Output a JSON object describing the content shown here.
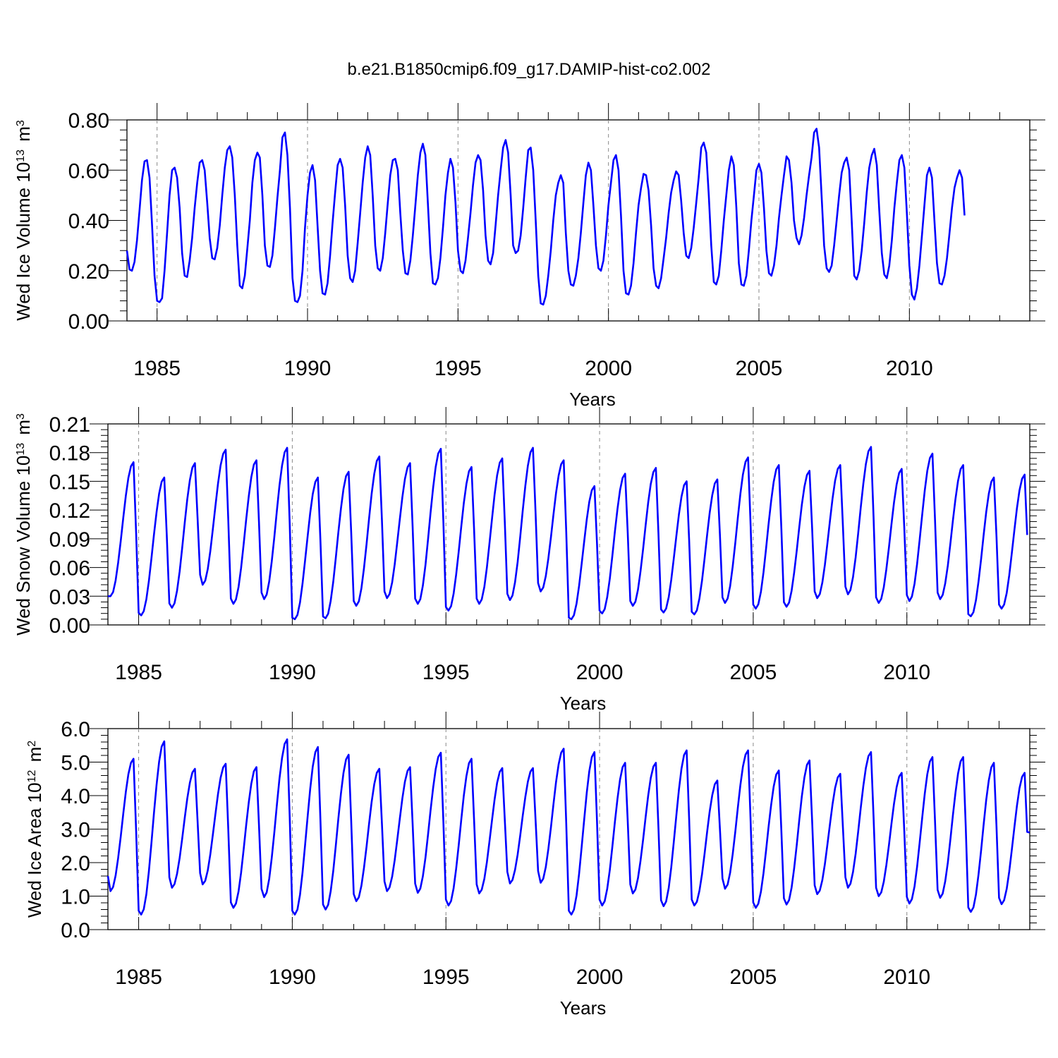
{
  "figure_title": "b.e21.B1850cmip6.f09_g17.DAMIP-hist-co2.002",
  "chart_data": [
    {
      "type": "line",
      "title": "b.e21.B1850cmip6.f09_g17.DAMIP-hist-co2.002",
      "xlabel": "Years",
      "ylabel": {
        "text": "Wed Ice Volume 10",
        "exp": "13",
        "unit": " m",
        "unit_exp": "3"
      },
      "xlim": [
        1984,
        2014
      ],
      "ylim": [
        0,
        0.8
      ],
      "yticks": [
        0.0,
        0.2,
        0.4,
        0.6,
        0.8
      ],
      "ytick_labels": [
        "0.00",
        "0.20",
        "0.40",
        "0.60",
        "0.80"
      ],
      "xticks": [
        1985,
        1990,
        1995,
        2000,
        2005,
        2010
      ],
      "xtick_labels": [
        "1985",
        "1990",
        "1995",
        "2000",
        "2005",
        "2010"
      ],
      "grid": "dashed vertical at major x ticks",
      "color": "#0000ff",
      "series": [
        {
          "name": "Wed Ice Volume",
          "x_start": 1984.0,
          "x_step": 0.08333,
          "values": [
            0.28,
            0.205,
            0.2,
            0.235,
            0.32,
            0.44,
            0.56,
            0.635,
            0.64,
            0.57,
            0.38,
            0.18,
            0.08,
            0.075,
            0.09,
            0.2,
            0.35,
            0.5,
            0.6,
            0.61,
            0.57,
            0.45,
            0.27,
            0.18,
            0.175,
            0.24,
            0.33,
            0.45,
            0.55,
            0.63,
            0.64,
            0.6,
            0.47,
            0.33,
            0.25,
            0.245,
            0.29,
            0.38,
            0.5,
            0.61,
            0.68,
            0.695,
            0.65,
            0.5,
            0.3,
            0.14,
            0.13,
            0.18,
            0.29,
            0.4,
            0.55,
            0.64,
            0.67,
            0.65,
            0.5,
            0.3,
            0.22,
            0.215,
            0.26,
            0.37,
            0.49,
            0.6,
            0.73,
            0.75,
            0.66,
            0.45,
            0.17,
            0.08,
            0.075,
            0.1,
            0.2,
            0.37,
            0.5,
            0.59,
            0.62,
            0.56,
            0.38,
            0.2,
            0.11,
            0.105,
            0.15,
            0.26,
            0.39,
            0.51,
            0.62,
            0.645,
            0.61,
            0.46,
            0.26,
            0.17,
            0.155,
            0.2,
            0.31,
            0.43,
            0.55,
            0.65,
            0.695,
            0.66,
            0.5,
            0.3,
            0.21,
            0.2,
            0.25,
            0.35,
            0.47,
            0.58,
            0.64,
            0.645,
            0.6,
            0.43,
            0.28,
            0.19,
            0.185,
            0.24,
            0.34,
            0.46,
            0.58,
            0.67,
            0.705,
            0.66,
            0.47,
            0.27,
            0.15,
            0.145,
            0.17,
            0.25,
            0.37,
            0.5,
            0.59,
            0.645,
            0.61,
            0.47,
            0.28,
            0.2,
            0.19,
            0.24,
            0.33,
            0.43,
            0.54,
            0.63,
            0.66,
            0.64,
            0.52,
            0.34,
            0.24,
            0.225,
            0.27,
            0.38,
            0.5,
            0.6,
            0.69,
            0.72,
            0.67,
            0.5,
            0.3,
            0.27,
            0.28,
            0.34,
            0.45,
            0.57,
            0.68,
            0.69,
            0.6,
            0.4,
            0.18,
            0.07,
            0.065,
            0.1,
            0.18,
            0.28,
            0.4,
            0.5,
            0.55,
            0.58,
            0.55,
            0.35,
            0.2,
            0.145,
            0.14,
            0.18,
            0.25,
            0.35,
            0.47,
            0.58,
            0.63,
            0.6,
            0.46,
            0.3,
            0.21,
            0.2,
            0.24,
            0.34,
            0.46,
            0.55,
            0.64,
            0.66,
            0.6,
            0.42,
            0.2,
            0.11,
            0.105,
            0.14,
            0.23,
            0.35,
            0.46,
            0.53,
            0.585,
            0.58,
            0.52,
            0.38,
            0.21,
            0.14,
            0.13,
            0.17,
            0.25,
            0.33,
            0.43,
            0.51,
            0.56,
            0.595,
            0.58,
            0.48,
            0.35,
            0.26,
            0.25,
            0.29,
            0.37,
            0.47,
            0.57,
            0.69,
            0.71,
            0.67,
            0.5,
            0.3,
            0.155,
            0.145,
            0.18,
            0.28,
            0.4,
            0.5,
            0.6,
            0.655,
            0.62,
            0.45,
            0.23,
            0.145,
            0.14,
            0.18,
            0.28,
            0.4,
            0.5,
            0.6,
            0.625,
            0.59,
            0.45,
            0.28,
            0.19,
            0.18,
            0.22,
            0.3,
            0.41,
            0.5,
            0.58,
            0.655,
            0.64,
            0.55,
            0.4,
            0.33,
            0.305,
            0.34,
            0.41,
            0.5,
            0.58,
            0.65,
            0.75,
            0.765,
            0.69,
            0.5,
            0.3,
            0.21,
            0.195,
            0.22,
            0.3,
            0.4,
            0.5,
            0.59,
            0.63,
            0.65,
            0.6,
            0.4,
            0.18,
            0.165,
            0.2,
            0.28,
            0.39,
            0.51,
            0.61,
            0.66,
            0.685,
            0.62,
            0.44,
            0.27,
            0.185,
            0.17,
            0.22,
            0.32,
            0.45,
            0.55,
            0.64,
            0.66,
            0.61,
            0.43,
            0.22,
            0.105,
            0.085,
            0.13,
            0.22,
            0.34,
            0.46,
            0.58,
            0.61,
            0.57,
            0.4,
            0.23,
            0.15,
            0.145,
            0.18,
            0.25,
            0.35,
            0.45,
            0.53,
            0.57,
            0.6,
            0.57,
            0.42
          ]
        }
      ]
    },
    {
      "type": "line",
      "xlabel": "Years",
      "ylabel": {
        "text": "Wed Snow Volume 10",
        "exp": "13",
        "unit": " m",
        "unit_exp": "3"
      },
      "xlim": [
        1984,
        2014
      ],
      "ylim": [
        0,
        0.21
      ],
      "yticks": [
        0.0,
        0.03,
        0.06,
        0.09,
        0.12,
        0.15,
        0.18,
        0.21
      ],
      "ytick_labels": [
        "0.00",
        "0.03",
        "0.06",
        "0.09",
        "0.12",
        "0.15",
        "0.18",
        "0.21"
      ],
      "xticks": [
        1985,
        1990,
        1995,
        2000,
        2005,
        2010
      ],
      "xtick_labels": [
        "1985",
        "1990",
        "1995",
        "2000",
        "2005",
        "2010"
      ],
      "grid": "dashed vertical at major x ticks",
      "color": "#0000ff",
      "series": [
        {
          "name": "Wed Snow Volume",
          "x_start": 1984.0,
          "x_step": 0.08333,
          "peaks": [
            0.17,
            0.154,
            0.169,
            0.183,
            0.172,
            0.185,
            0.154,
            0.16,
            0.176,
            0.169,
            0.184,
            0.165,
            0.174,
            0.185,
            0.172,
            0.145,
            0.158,
            0.164,
            0.15,
            0.152,
            0.175,
            0.167,
            0.161,
            0.167,
            0.186,
            0.163,
            0.179,
            0.167,
            0.154,
            0.157
          ],
          "troughs": [
            0.03,
            0.01,
            0.018,
            0.042,
            0.022,
            0.027,
            0.006,
            0.007,
            0.02,
            0.028,
            0.022,
            0.015,
            0.022,
            0.026,
            0.035,
            0.006,
            0.012,
            0.02,
            0.013,
            0.011,
            0.023,
            0.017,
            0.019,
            0.028,
            0.032,
            0.023,
            0.025,
            0.027,
            0.009,
            0.017
          ]
        }
      ]
    },
    {
      "type": "line",
      "xlabel": "Years",
      "ylabel": {
        "text": "Wed Ice Area 10",
        "exp": "12",
        "unit": " m",
        "unit_exp": "2"
      },
      "xlim": [
        1984,
        2014
      ],
      "ylim": [
        0,
        6.0
      ],
      "yticks": [
        0.0,
        1.0,
        2.0,
        3.0,
        4.0,
        5.0,
        6.0
      ],
      "ytick_labels": [
        "0.0",
        "1.0",
        "2.0",
        "3.0",
        "4.0",
        "5.0",
        "6.0"
      ],
      "xticks": [
        1985,
        1990,
        1995,
        2000,
        2005,
        2010
      ],
      "xtick_labels": [
        "1985",
        "1990",
        "1995",
        "2000",
        "2005",
        "2010"
      ],
      "grid": "dashed vertical at major x ticks",
      "color": "#0000ff",
      "series": [
        {
          "name": "Wed Ice Area",
          "x_start": 1984.0,
          "x_step": 0.08333,
          "peaks": [
            5.1,
            5.62,
            4.8,
            4.95,
            4.85,
            5.68,
            5.45,
            5.22,
            4.8,
            4.85,
            5.28,
            5.1,
            4.82,
            4.82,
            5.4,
            5.3,
            4.98,
            4.98,
            5.35,
            4.45,
            5.35,
            4.75,
            5.05,
            4.65,
            5.3,
            4.68,
            5.15,
            5.15,
            4.98,
            4.68
          ],
          "troughs": [
            1.15,
            0.45,
            1.25,
            1.35,
            0.65,
            0.97,
            0.45,
            0.6,
            0.85,
            1.15,
            1.1,
            0.72,
            1.08,
            1.38,
            1.4,
            0.45,
            0.72,
            1.08,
            0.7,
            0.72,
            1.22,
            0.65,
            0.75,
            1.06,
            1.25,
            1.0,
            0.78,
            0.95,
            0.53,
            0.76
          ],
          "start_value": 1.6,
          "end_value": 2.9
        }
      ]
    }
  ]
}
